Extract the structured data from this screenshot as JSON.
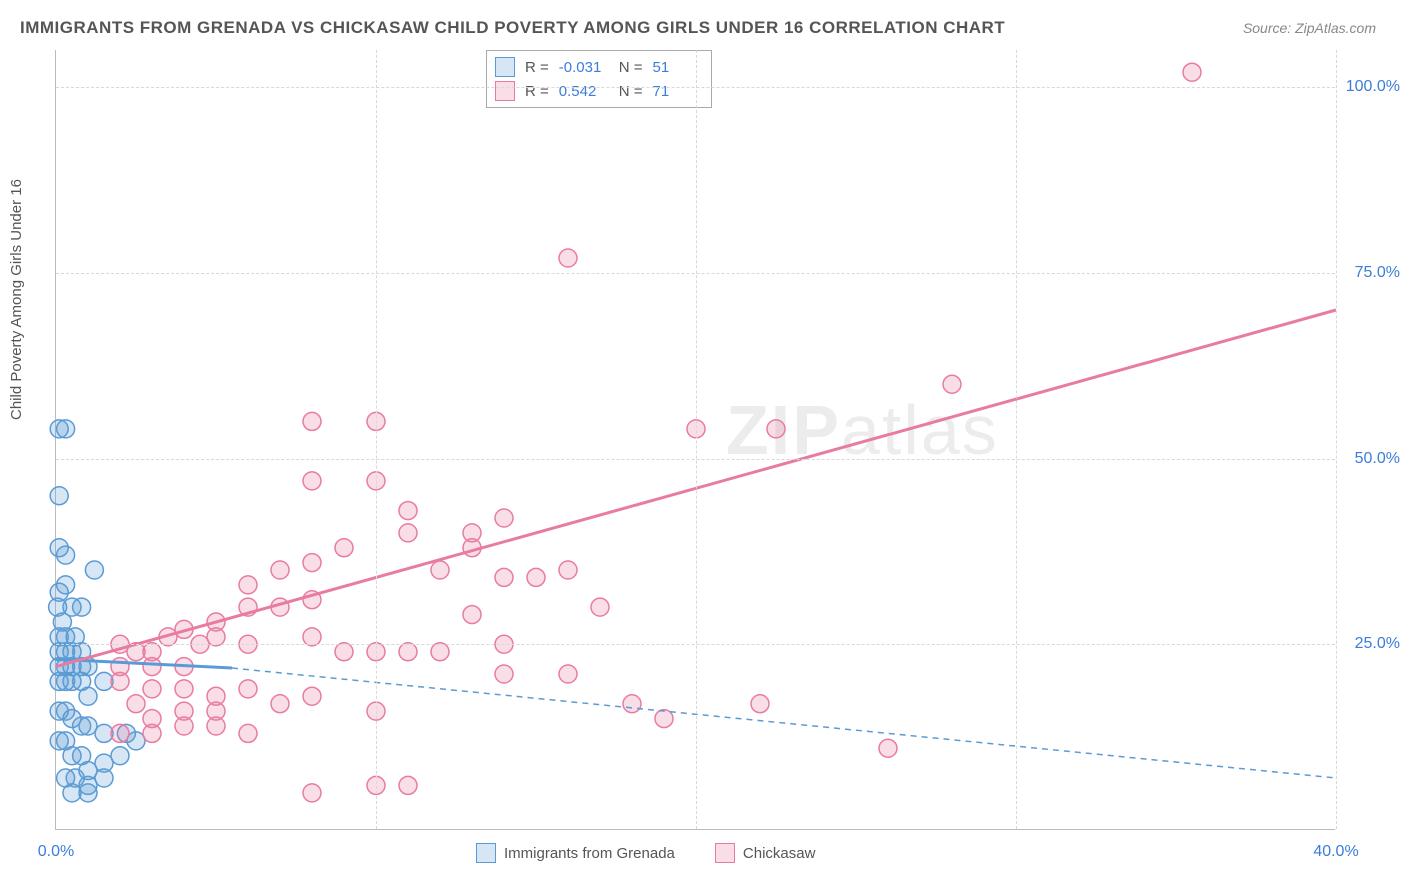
{
  "title": "IMMIGRANTS FROM GRENADA VS CHICKASAW CHILD POVERTY AMONG GIRLS UNDER 16 CORRELATION CHART",
  "source": "Source: ZipAtlas.com",
  "y_axis_label": "Child Poverty Among Girls Under 16",
  "watermark": {
    "bold": "ZIP",
    "rest": "atlas"
  },
  "chart": {
    "type": "scatter",
    "xlim": [
      0,
      40
    ],
    "ylim": [
      0,
      105
    ],
    "x_ticks": [
      0,
      10,
      20,
      30,
      40
    ],
    "x_tick_labels": [
      "0.0%",
      "",
      "",
      "",
      "40.0%"
    ],
    "y_ticks": [
      25,
      50,
      75,
      100
    ],
    "y_tick_labels": [
      "25.0%",
      "50.0%",
      "75.0%",
      "100.0%"
    ],
    "background_color": "#ffffff",
    "grid_color": "#d8d8d8",
    "marker_radius": 9,
    "marker_stroke_width": 1.5,
    "marker_fill_opacity": 0.25,
    "trend_line_width": 3,
    "dashed_line_width": 1.5
  },
  "series": [
    {
      "name": "Immigrants from Grenada",
      "color": "#5b9bd5",
      "fill": "#5b9bd5",
      "r_value": "-0.031",
      "n_value": "51",
      "trend": {
        "x1": 0,
        "y1": 23,
        "x2": 5.5,
        "y2": 21.8,
        "solid": true
      },
      "trend_ext": {
        "x1": 5.5,
        "y1": 21.8,
        "x2": 40,
        "y2": 7
      },
      "points": [
        [
          0.1,
          54
        ],
        [
          0.3,
          54
        ],
        [
          0.1,
          45
        ],
        [
          0.1,
          38
        ],
        [
          0.3,
          37
        ],
        [
          0.1,
          32
        ],
        [
          0.3,
          33
        ],
        [
          0.05,
          30
        ],
        [
          0.2,
          28
        ],
        [
          0.5,
          30
        ],
        [
          0.8,
          30
        ],
        [
          1.2,
          35
        ],
        [
          0.1,
          26
        ],
        [
          0.3,
          26
        ],
        [
          0.6,
          26
        ],
        [
          0.1,
          24
        ],
        [
          0.3,
          24
        ],
        [
          0.5,
          24
        ],
        [
          0.8,
          24
        ],
        [
          0.1,
          22
        ],
        [
          0.3,
          22
        ],
        [
          0.5,
          22
        ],
        [
          0.8,
          22
        ],
        [
          1.0,
          22
        ],
        [
          0.1,
          20
        ],
        [
          0.3,
          20
        ],
        [
          0.5,
          20
        ],
        [
          0.8,
          20
        ],
        [
          1.0,
          18
        ],
        [
          1.5,
          20
        ],
        [
          0.1,
          16
        ],
        [
          0.3,
          16
        ],
        [
          0.5,
          15
        ],
        [
          0.8,
          14
        ],
        [
          1.0,
          14
        ],
        [
          1.5,
          13
        ],
        [
          2.2,
          13
        ],
        [
          0.1,
          12
        ],
        [
          0.3,
          12
        ],
        [
          0.5,
          10
        ],
        [
          0.8,
          10
        ],
        [
          1.0,
          8
        ],
        [
          1.5,
          9
        ],
        [
          2.0,
          10
        ],
        [
          2.5,
          12
        ],
        [
          0.3,
          7
        ],
        [
          0.6,
          7
        ],
        [
          1.0,
          6
        ],
        [
          1.5,
          7
        ],
        [
          0.5,
          5
        ],
        [
          1.0,
          5
        ]
      ]
    },
    {
      "name": "Chickasaw",
      "color": "#e87ca0",
      "fill": "#e87ca0",
      "r_value": "0.542",
      "n_value": "71",
      "trend": {
        "x1": 0,
        "y1": 22,
        "x2": 40,
        "y2": 70,
        "solid": true
      },
      "points": [
        [
          35.5,
          102
        ],
        [
          16,
          77
        ],
        [
          28,
          60
        ],
        [
          22.5,
          54
        ],
        [
          20,
          54
        ],
        [
          14,
          42
        ],
        [
          8,
          55
        ],
        [
          10,
          55
        ],
        [
          8,
          47
        ],
        [
          10,
          47
        ],
        [
          13,
          40
        ],
        [
          9,
          38
        ],
        [
          11,
          43
        ],
        [
          11,
          40
        ],
        [
          7,
          35
        ],
        [
          8,
          36
        ],
        [
          6,
          33
        ],
        [
          12,
          35
        ],
        [
          16,
          35
        ],
        [
          13,
          38
        ],
        [
          6,
          30
        ],
        [
          7,
          30
        ],
        [
          8,
          31
        ],
        [
          5,
          28
        ],
        [
          13,
          29
        ],
        [
          14,
          34
        ],
        [
          15,
          34
        ],
        [
          12,
          24
        ],
        [
          14,
          25
        ],
        [
          14,
          21
        ],
        [
          16,
          21
        ],
        [
          8,
          26
        ],
        [
          9,
          24
        ],
        [
          10,
          24
        ],
        [
          11,
          24
        ],
        [
          4,
          27
        ],
        [
          5,
          26
        ],
        [
          6,
          25
        ],
        [
          3,
          24
        ],
        [
          2.5,
          24
        ],
        [
          2,
          25
        ],
        [
          3.5,
          26
        ],
        [
          4.5,
          25
        ],
        [
          2,
          22
        ],
        [
          3,
          22
        ],
        [
          4,
          22
        ],
        [
          2,
          20
        ],
        [
          3,
          19
        ],
        [
          4,
          19
        ],
        [
          5,
          18
        ],
        [
          6,
          19
        ],
        [
          7,
          17
        ],
        [
          8,
          18
        ],
        [
          10,
          16
        ],
        [
          17,
          30
        ],
        [
          18,
          17
        ],
        [
          19,
          15
        ],
        [
          22,
          17
        ],
        [
          26,
          11
        ],
        [
          11,
          6
        ],
        [
          10,
          6
        ],
        [
          8,
          5
        ],
        [
          5,
          14
        ],
        [
          6,
          13
        ],
        [
          4,
          14
        ],
        [
          3,
          13
        ],
        [
          2,
          13
        ],
        [
          2.5,
          17
        ],
        [
          3,
          15
        ],
        [
          5,
          16
        ],
        [
          4,
          16
        ]
      ]
    }
  ],
  "stats_legend": {
    "r_label": "R =",
    "n_label": "N ="
  },
  "bottom_legend": {
    "items": [
      "Immigrants from Grenada",
      "Chickasaw"
    ]
  }
}
